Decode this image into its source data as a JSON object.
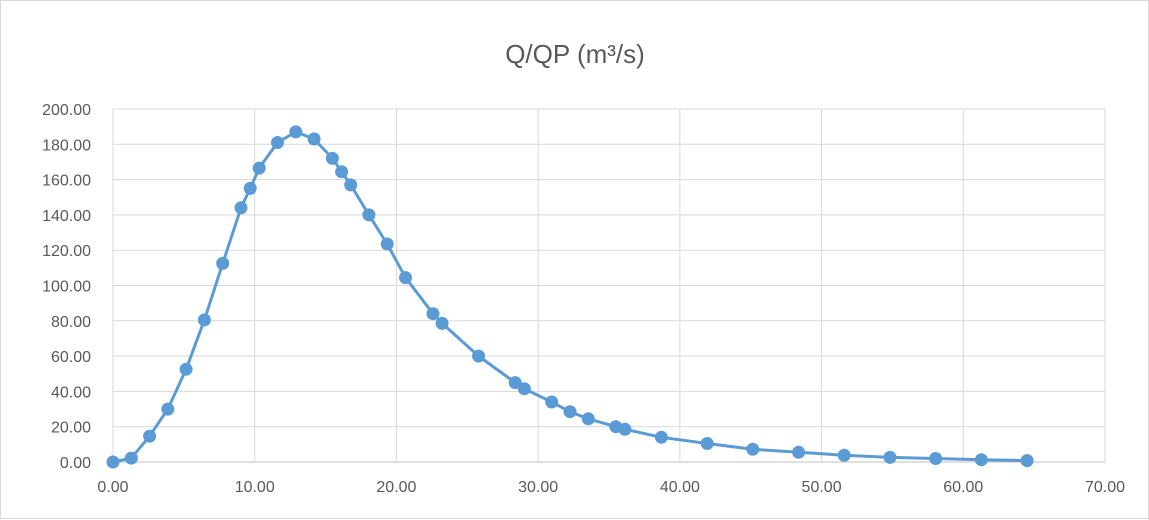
{
  "chart_data": {
    "type": "scatter",
    "title": "Q/QP (m³/s)",
    "xlabel": "",
    "ylabel": "",
    "xlim": [
      0,
      70
    ],
    "ylim": [
      0,
      200
    ],
    "x_ticks": [
      "0.00",
      "10.00",
      "20.00",
      "30.00",
      "40.00",
      "50.00",
      "60.00",
      "70.00"
    ],
    "y_ticks": [
      "0.00",
      "20.00",
      "40.00",
      "60.00",
      "80.00",
      "100.00",
      "120.00",
      "140.00",
      "160.00",
      "180.00",
      "200.00"
    ],
    "grid": true,
    "line_color": "#5b9bd5",
    "marker_color": "#5b9bd5",
    "series": [
      {
        "x": [
          0.0,
          1.29,
          2.58,
          3.87,
          5.16,
          6.45,
          7.74,
          9.03,
          9.68,
          10.32,
          11.61,
          12.9,
          14.19,
          15.48,
          16.13,
          16.77,
          18.06,
          19.35,
          20.64,
          22.58,
          23.22,
          25.8,
          28.38,
          29.03,
          30.96,
          32.25,
          33.54,
          35.48,
          36.12,
          38.7,
          41.93,
          45.15,
          48.38,
          51.6,
          54.83,
          58.05,
          61.28,
          64.5
        ],
        "y": [
          0.0,
          2.2,
          14.6,
          30.0,
          52.5,
          80.5,
          112.5,
          144.0,
          155.0,
          166.5,
          181.0,
          187.0,
          183.0,
          172.0,
          164.5,
          157.0,
          140.0,
          123.5,
          104.5,
          84.0,
          78.5,
          60.0,
          45.0,
          41.5,
          34.0,
          28.5,
          24.5,
          20.0,
          18.5,
          14.0,
          10.5,
          7.2,
          5.5,
          3.8,
          2.6,
          2.0,
          1.3,
          0.8
        ]
      }
    ]
  }
}
